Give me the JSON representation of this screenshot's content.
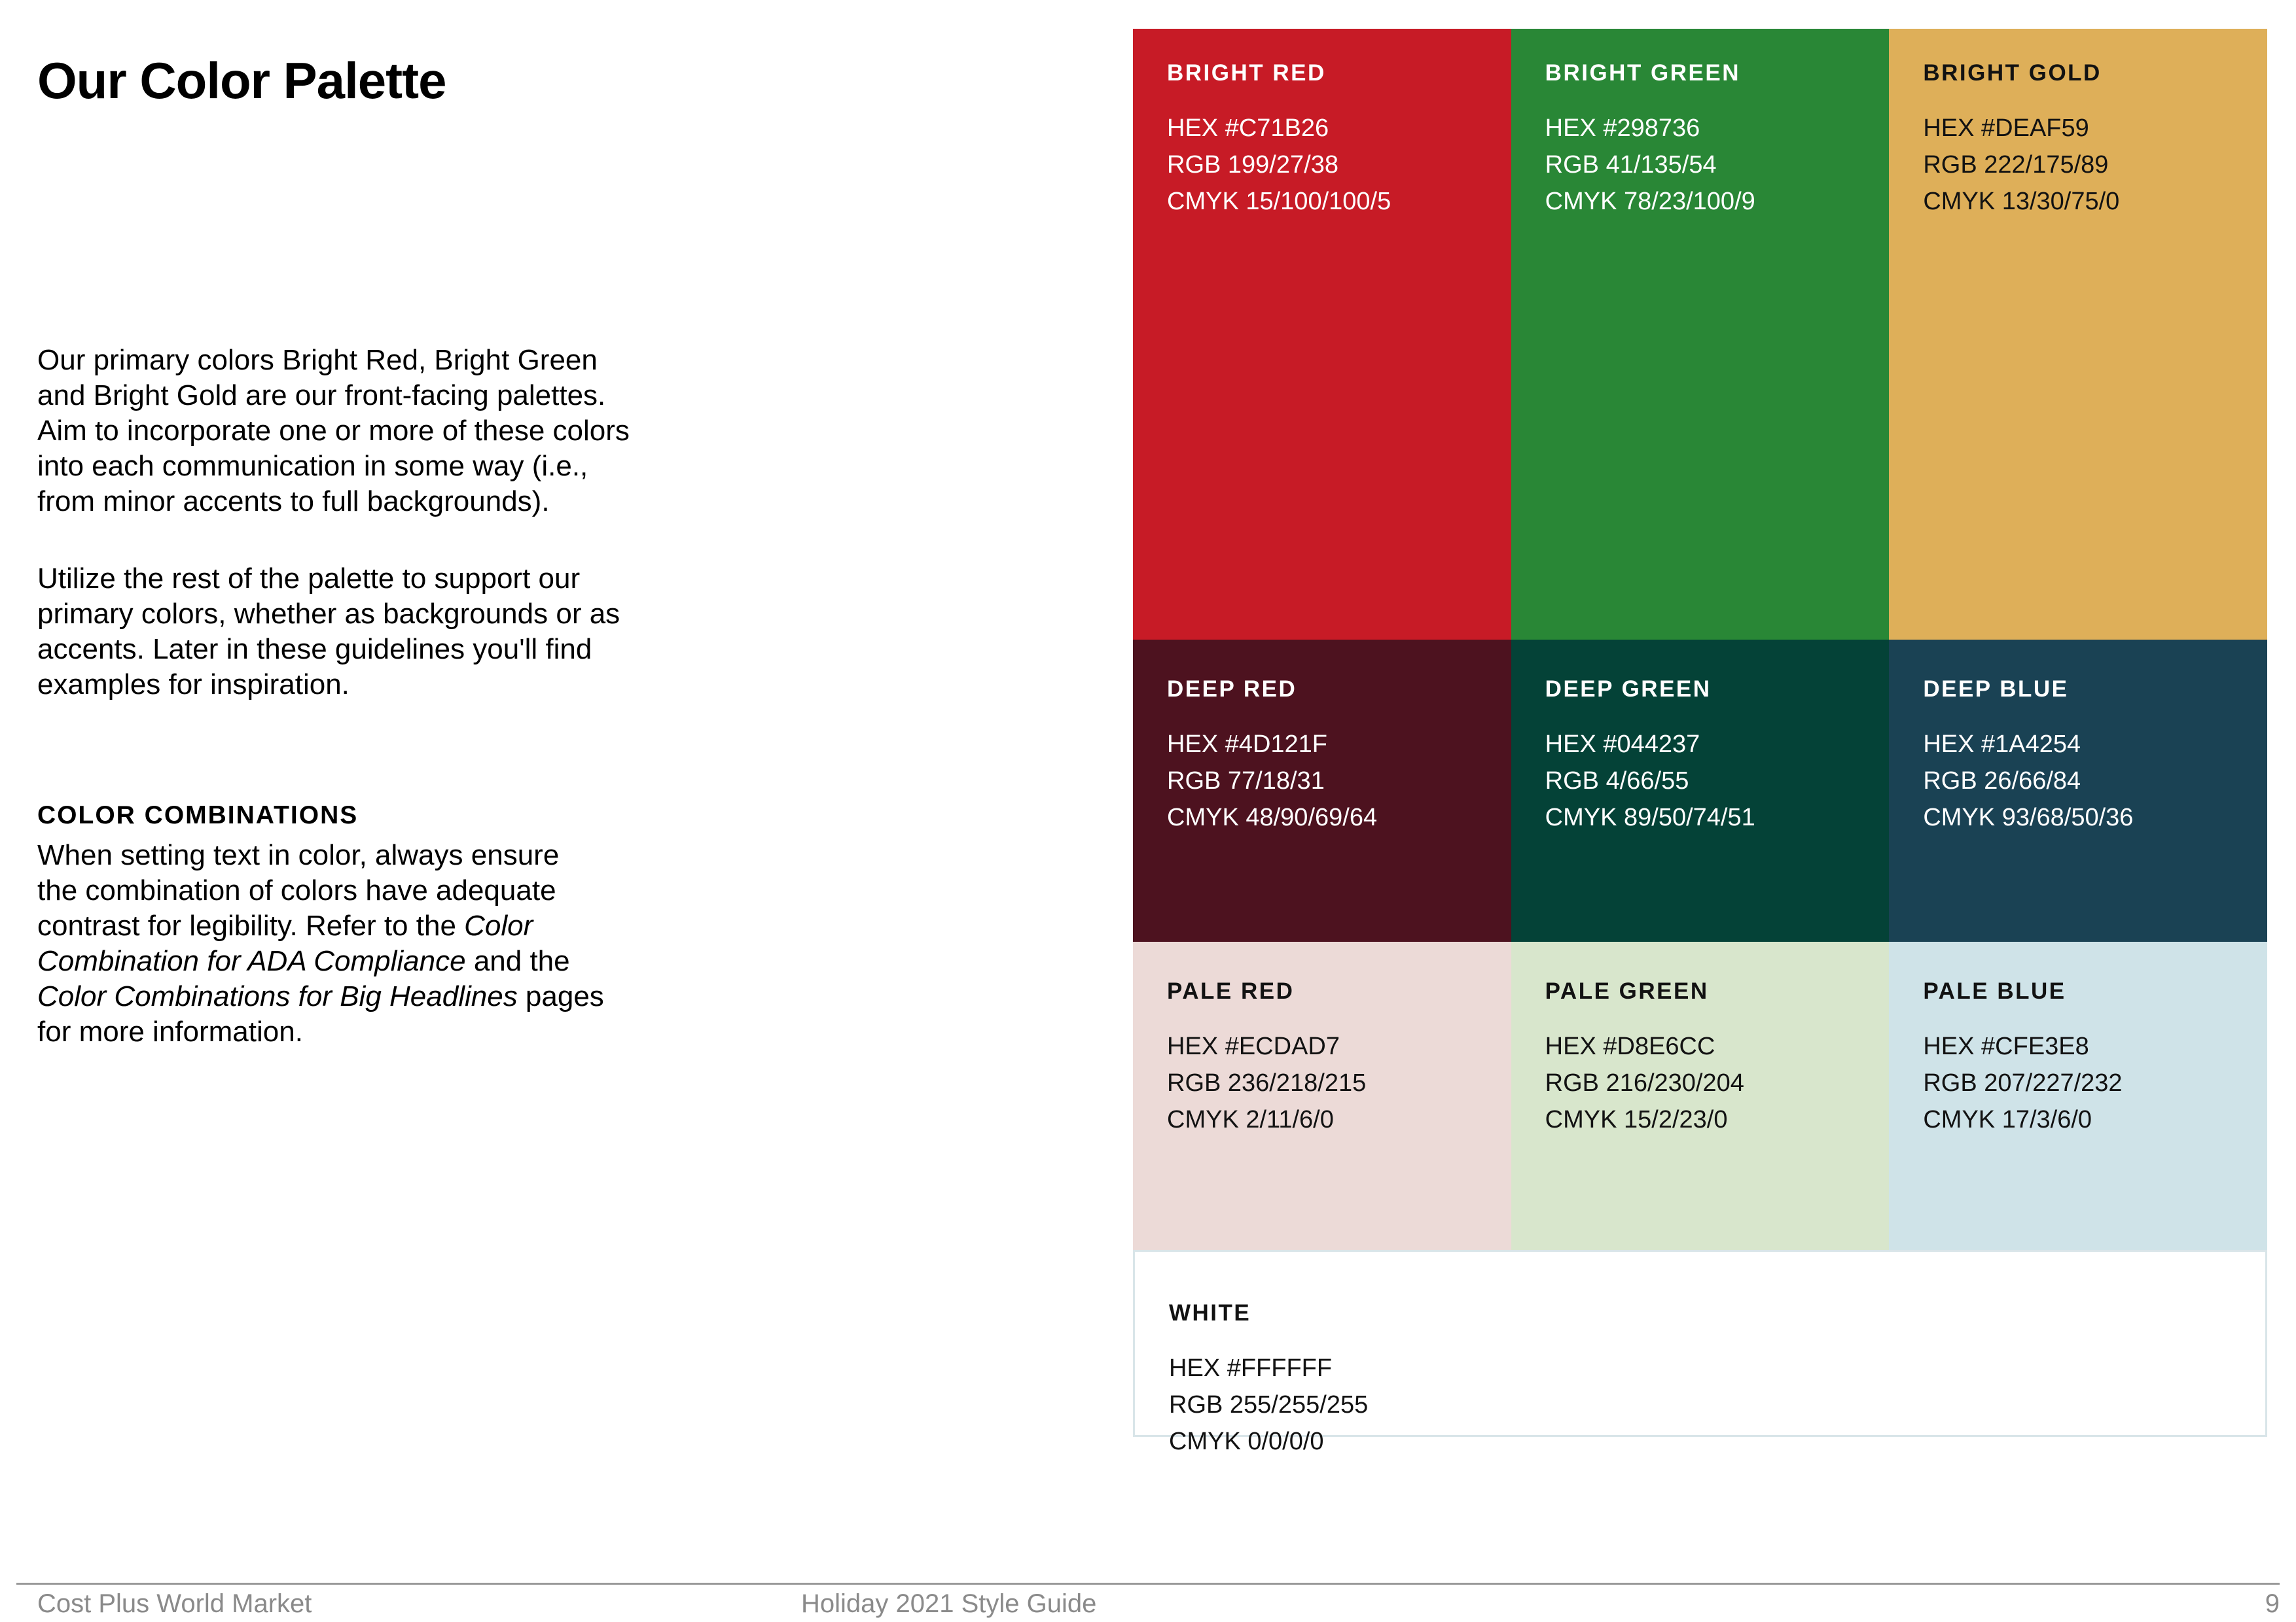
{
  "page": {
    "title": "Our Color Palette",
    "section_heading": "COLOR COMBINATIONS"
  },
  "paragraphs": {
    "p1_lines": [
      "Our primary colors Bright Red, Bright Green",
      "and Bright Gold are our front-facing palettes.",
      "Aim to incorporate one or more of these colors",
      "into each communication in some way (i.e.,",
      "from minor accents to full backgrounds)."
    ],
    "p2_lines": [
      "Utilize the rest of the palette to support our",
      "primary colors, whether as backgrounds or as",
      "accents. Later in these guidelines you'll find",
      "examples for inspiration."
    ],
    "p3_segments": [
      {
        "text": "When setting text in color, always ensure\nthe combination of colors have adequate\ncontrast for legibility. Refer to the ",
        "italic": false
      },
      {
        "text": "Color\nCombination for ADA Compliance",
        "italic": true
      },
      {
        "text": " and the\n",
        "italic": false
      },
      {
        "text": "Color Combinations for Big Headlines",
        "italic": true
      },
      {
        "text": " pages\nfor more information.",
        "italic": false
      }
    ]
  },
  "palette": {
    "swatches": [
      {
        "name": "BRIGHT RED",
        "hex": "HEX #C71B26",
        "rgb": "RGB 199/27/38",
        "cmyk": "CMYK 15/100/100/5",
        "bg": "#C71B26",
        "text_color": "#FFFFFF"
      },
      {
        "name": "BRIGHT GREEN",
        "hex": "HEX #298736",
        "rgb": "RGB 41/135/54",
        "cmyk": "CMYK 78/23/100/9",
        "bg": "#298736",
        "text_color": "#FFFFFF"
      },
      {
        "name": "BRIGHT GOLD",
        "hex": "HEX #DEAF59",
        "rgb": "RGB 222/175/89",
        "cmyk": "CMYK 13/30/75/0",
        "bg": "#DEAF59",
        "text_color": "#121212"
      },
      {
        "name": "DEEP RED",
        "hex": "HEX #4D121F",
        "rgb": "RGB 77/18/31",
        "cmyk": "CMYK 48/90/69/64",
        "bg": "#4D121F",
        "text_color": "#FFFFFF"
      },
      {
        "name": "DEEP GREEN",
        "hex": "HEX #044237",
        "rgb": "RGB 4/66/55",
        "cmyk": "CMYK 89/50/74/51",
        "bg": "#044237",
        "text_color": "#FFFFFF"
      },
      {
        "name": "DEEP BLUE",
        "hex": "HEX #1A4254",
        "rgb": "RGB 26/66/84",
        "cmyk": "CMYK 93/68/50/36",
        "bg": "#1A4254",
        "text_color": "#FFFFFF"
      },
      {
        "name": "PALE RED",
        "hex": "HEX #ECDAD7",
        "rgb": "RGB 236/218/215",
        "cmyk": "CMYK 2/11/6/0",
        "bg": "#ECDAD7",
        "text_color": "#121212"
      },
      {
        "name": "PALE GREEN",
        "hex": "HEX #D8E6CC",
        "rgb": "RGB 216/230/204",
        "cmyk": "CMYK 15/2/23/0",
        "bg": "#D8E6CC",
        "text_color": "#121212"
      },
      {
        "name": "PALE BLUE",
        "hex": "HEX #CFE3E8",
        "rgb": "RGB 207/227/232",
        "cmyk": "CMYK 17/3/6/0",
        "bg": "#CFE3E8",
        "text_color": "#121212"
      }
    ],
    "white_swatch": {
      "name": "WHITE",
      "hex": "HEX #FFFFFF",
      "rgb": "RGB 255/255/255",
      "cmyk": "CMYK 0/0/0/0",
      "bg": "#FFFFFF",
      "text_color": "#121212",
      "border": "#D9E5E9"
    }
  },
  "footer": {
    "left": "Cost Plus World Market",
    "center": "Holiday 2021 Style Guide",
    "page_number": "9",
    "rule_color": "#999999",
    "text_color": "#8A8A8A"
  }
}
